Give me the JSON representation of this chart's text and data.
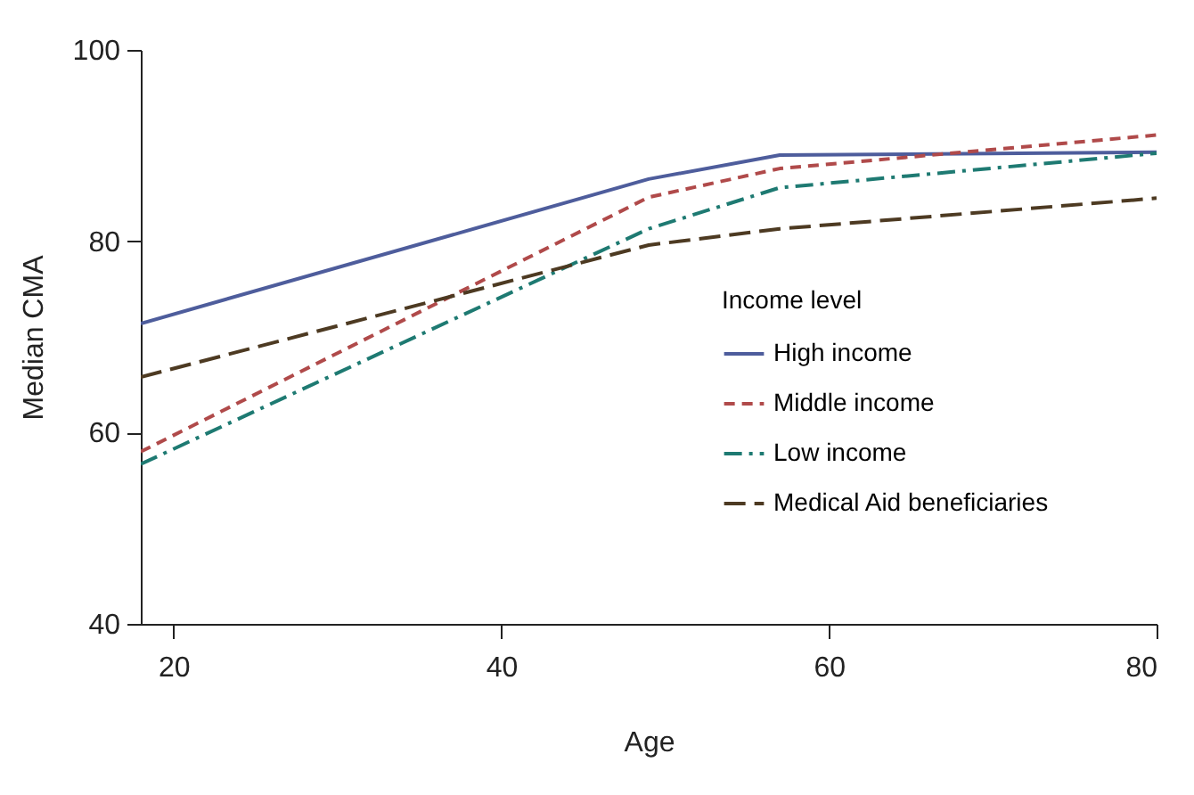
{
  "chart_data": {
    "type": "line",
    "xlabel": "Age",
    "ylabel": "Median CMA",
    "legend_title": "Income level",
    "x": [
      18,
      49,
      57,
      80
    ],
    "series": [
      {
        "name": "High income",
        "color": "#4e5d9c",
        "line_style": "solid",
        "values": [
          71.4,
          86.5,
          89.0,
          89.3
        ]
      },
      {
        "name": "Middle income",
        "color": "#b04a4a",
        "line_style": "dashed",
        "values": [
          58.0,
          84.6,
          87.6,
          91.1
        ]
      },
      {
        "name": "Low income",
        "color": "#1e7a72",
        "line_style": "dashdot",
        "values": [
          56.7,
          81.3,
          85.6,
          89.2
        ]
      },
      {
        "name": "Medical Aid beneficiaries",
        "color": "#4d3a22",
        "line_style": "longdash",
        "values": [
          65.8,
          79.6,
          81.3,
          84.5
        ]
      }
    ],
    "xlim": [
      18,
      80
    ],
    "xticks": [
      20,
      40,
      60,
      80
    ],
    "ylim": [
      40,
      100
    ],
    "yticks": [
      40,
      60,
      80,
      100
    ],
    "grid": false,
    "legend": "bottom right",
    "marker": "none"
  }
}
